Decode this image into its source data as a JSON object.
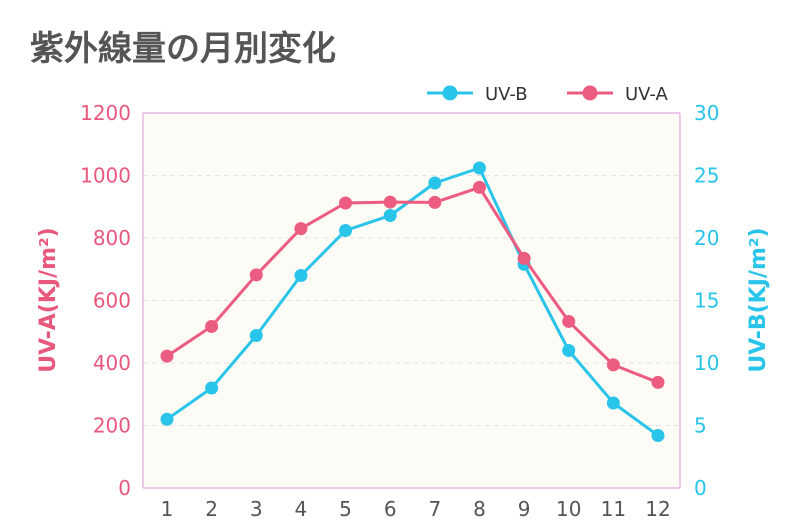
{
  "chart_data": {
    "type": "line",
    "title": "紫外線量の月別変化",
    "categories": [
      "1",
      "2",
      "3",
      "4",
      "5",
      "6",
      "7",
      "8",
      "9",
      "10",
      "11",
      "12"
    ],
    "series": [
      {
        "name": "UV-B",
        "axis": "right",
        "color": "#29c4ea",
        "values": [
          5.5,
          8.0,
          12.2,
          17.0,
          20.6,
          21.8,
          24.4,
          25.6,
          17.9,
          11.0,
          6.8,
          4.2
        ]
      },
      {
        "name": "UV-A",
        "axis": "left",
        "color": "#ec5b80",
        "values": [
          422,
          517,
          682,
          830,
          912,
          915,
          914,
          962,
          735,
          533,
          394,
          338
        ]
      }
    ],
    "y_left": {
      "label": "UV-A(KJ/m²)",
      "ylim": [
        0,
        1200
      ],
      "ticks": [
        "0",
        "200",
        "400",
        "600",
        "800",
        "1000",
        "1200"
      ],
      "color": "#e8587d"
    },
    "y_right": {
      "label": "UV-B(KJ/m²)",
      "ylim": [
        0,
        30
      ],
      "ticks": [
        "0",
        "5",
        "10",
        "15",
        "20",
        "25",
        "30"
      ],
      "color": "#29c4ea"
    },
    "x_ticks": [
      "1",
      "2",
      "3",
      "4",
      "5",
      "6",
      "7",
      "8",
      "9",
      "10",
      "11",
      "12"
    ],
    "legend_position": "top-right",
    "grid": true
  }
}
